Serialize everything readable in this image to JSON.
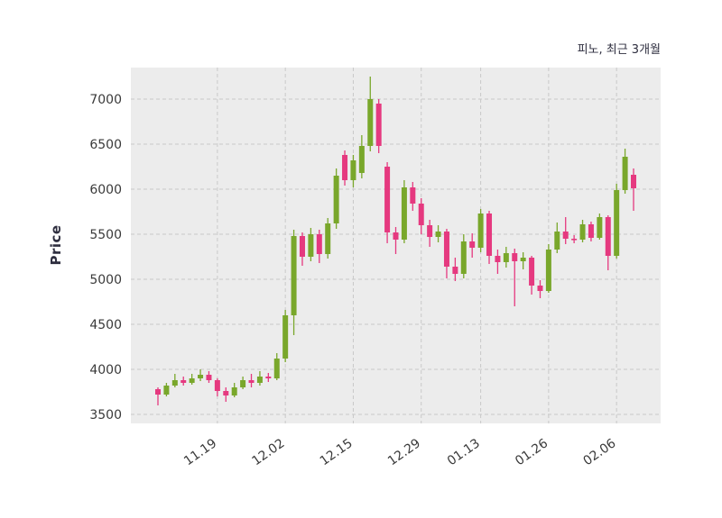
{
  "chart": {
    "title": "피노, 최근 3개월",
    "ylabel": "Price"
  },
  "colors": {
    "figure_bg": "#ffffff",
    "plot_bg": "#ececec",
    "grid": "#c9c9c9",
    "tick_text": "#3a3a3a",
    "up": "#79a72b",
    "down": "#e5397f"
  },
  "chart_data": {
    "type": "candlestick",
    "title": "피노, 최근 3개월",
    "xlabel": "",
    "ylabel": "Price",
    "legend": "none",
    "grid": "dashed",
    "ylim": [
      3400,
      7350
    ],
    "y_ticks": [
      3500,
      4000,
      4500,
      5000,
      5500,
      6000,
      6500,
      7000
    ],
    "x_tick_labels": [
      "11.19",
      "12.02",
      "12.15",
      "12.29",
      "01.13",
      "01.26",
      "02.06"
    ],
    "x_tick_indices": [
      7,
      15,
      23,
      31,
      38,
      46,
      54
    ],
    "ohlc_order": "[open, high, low, close]",
    "candles": [
      [
        3780,
        3800,
        3600,
        3720
      ],
      [
        3720,
        3850,
        3700,
        3820
      ],
      [
        3820,
        3950,
        3800,
        3880
      ],
      [
        3880,
        3920,
        3820,
        3850
      ],
      [
        3850,
        3950,
        3830,
        3900
      ],
      [
        3900,
        4000,
        3870,
        3940
      ],
      [
        3940,
        3980,
        3850,
        3880
      ],
      [
        3880,
        3900,
        3700,
        3760
      ],
      [
        3760,
        3800,
        3640,
        3710
      ],
      [
        3710,
        3850,
        3690,
        3800
      ],
      [
        3800,
        3920,
        3780,
        3880
      ],
      [
        3880,
        3950,
        3800,
        3850
      ],
      [
        3850,
        3980,
        3820,
        3920
      ],
      [
        3920,
        3960,
        3860,
        3900
      ],
      [
        3900,
        4180,
        3880,
        4120
      ],
      [
        4120,
        4660,
        4080,
        4600
      ],
      [
        4600,
        5550,
        4380,
        5480
      ],
      [
        5480,
        5520,
        5150,
        5250
      ],
      [
        5250,
        5570,
        5200,
        5500
      ],
      [
        5500,
        5550,
        5180,
        5280
      ],
      [
        5280,
        5680,
        5230,
        5620
      ],
      [
        5620,
        6230,
        5560,
        6150
      ],
      [
        6380,
        6430,
        6040,
        6100
      ],
      [
        6100,
        6380,
        6020,
        6320
      ],
      [
        6180,
        6600,
        6120,
        6480
      ],
      [
        6480,
        7250,
        6420,
        7000
      ],
      [
        6950,
        7000,
        6400,
        6480
      ],
      [
        6250,
        6300,
        5400,
        5520
      ],
      [
        5520,
        5580,
        5280,
        5440
      ],
      [
        5440,
        6100,
        5400,
        6020
      ],
      [
        6020,
        6080,
        5760,
        5840
      ],
      [
        5840,
        5900,
        5500,
        5600
      ],
      [
        5600,
        5660,
        5360,
        5470
      ],
      [
        5470,
        5600,
        5410,
        5530
      ],
      [
        5530,
        5560,
        5010,
        5140
      ],
      [
        5140,
        5240,
        4980,
        5060
      ],
      [
        5060,
        5500,
        5010,
        5420
      ],
      [
        5420,
        5510,
        5240,
        5350
      ],
      [
        5350,
        5780,
        5300,
        5730
      ],
      [
        5730,
        5760,
        5170,
        5260
      ],
      [
        5260,
        5330,
        5060,
        5190
      ],
      [
        5190,
        5360,
        5130,
        5290
      ],
      [
        5290,
        5340,
        4700,
        5200
      ],
      [
        5200,
        5300,
        5110,
        5240
      ],
      [
        5240,
        5260,
        4830,
        4930
      ],
      [
        4930,
        4990,
        4790,
        4870
      ],
      [
        4870,
        5390,
        4850,
        5330
      ],
      [
        5330,
        5630,
        5290,
        5530
      ],
      [
        5530,
        5690,
        5390,
        5450
      ],
      [
        5450,
        5490,
        5400,
        5440
      ],
      [
        5440,
        5660,
        5410,
        5610
      ],
      [
        5610,
        5640,
        5420,
        5460
      ],
      [
        5460,
        5730,
        5440,
        5690
      ],
      [
        5690,
        5710,
        5100,
        5260
      ],
      [
        5260,
        6060,
        5230,
        5990
      ],
      [
        5990,
        6450,
        5950,
        6360
      ],
      [
        6160,
        6230,
        5760,
        6010
      ]
    ]
  }
}
